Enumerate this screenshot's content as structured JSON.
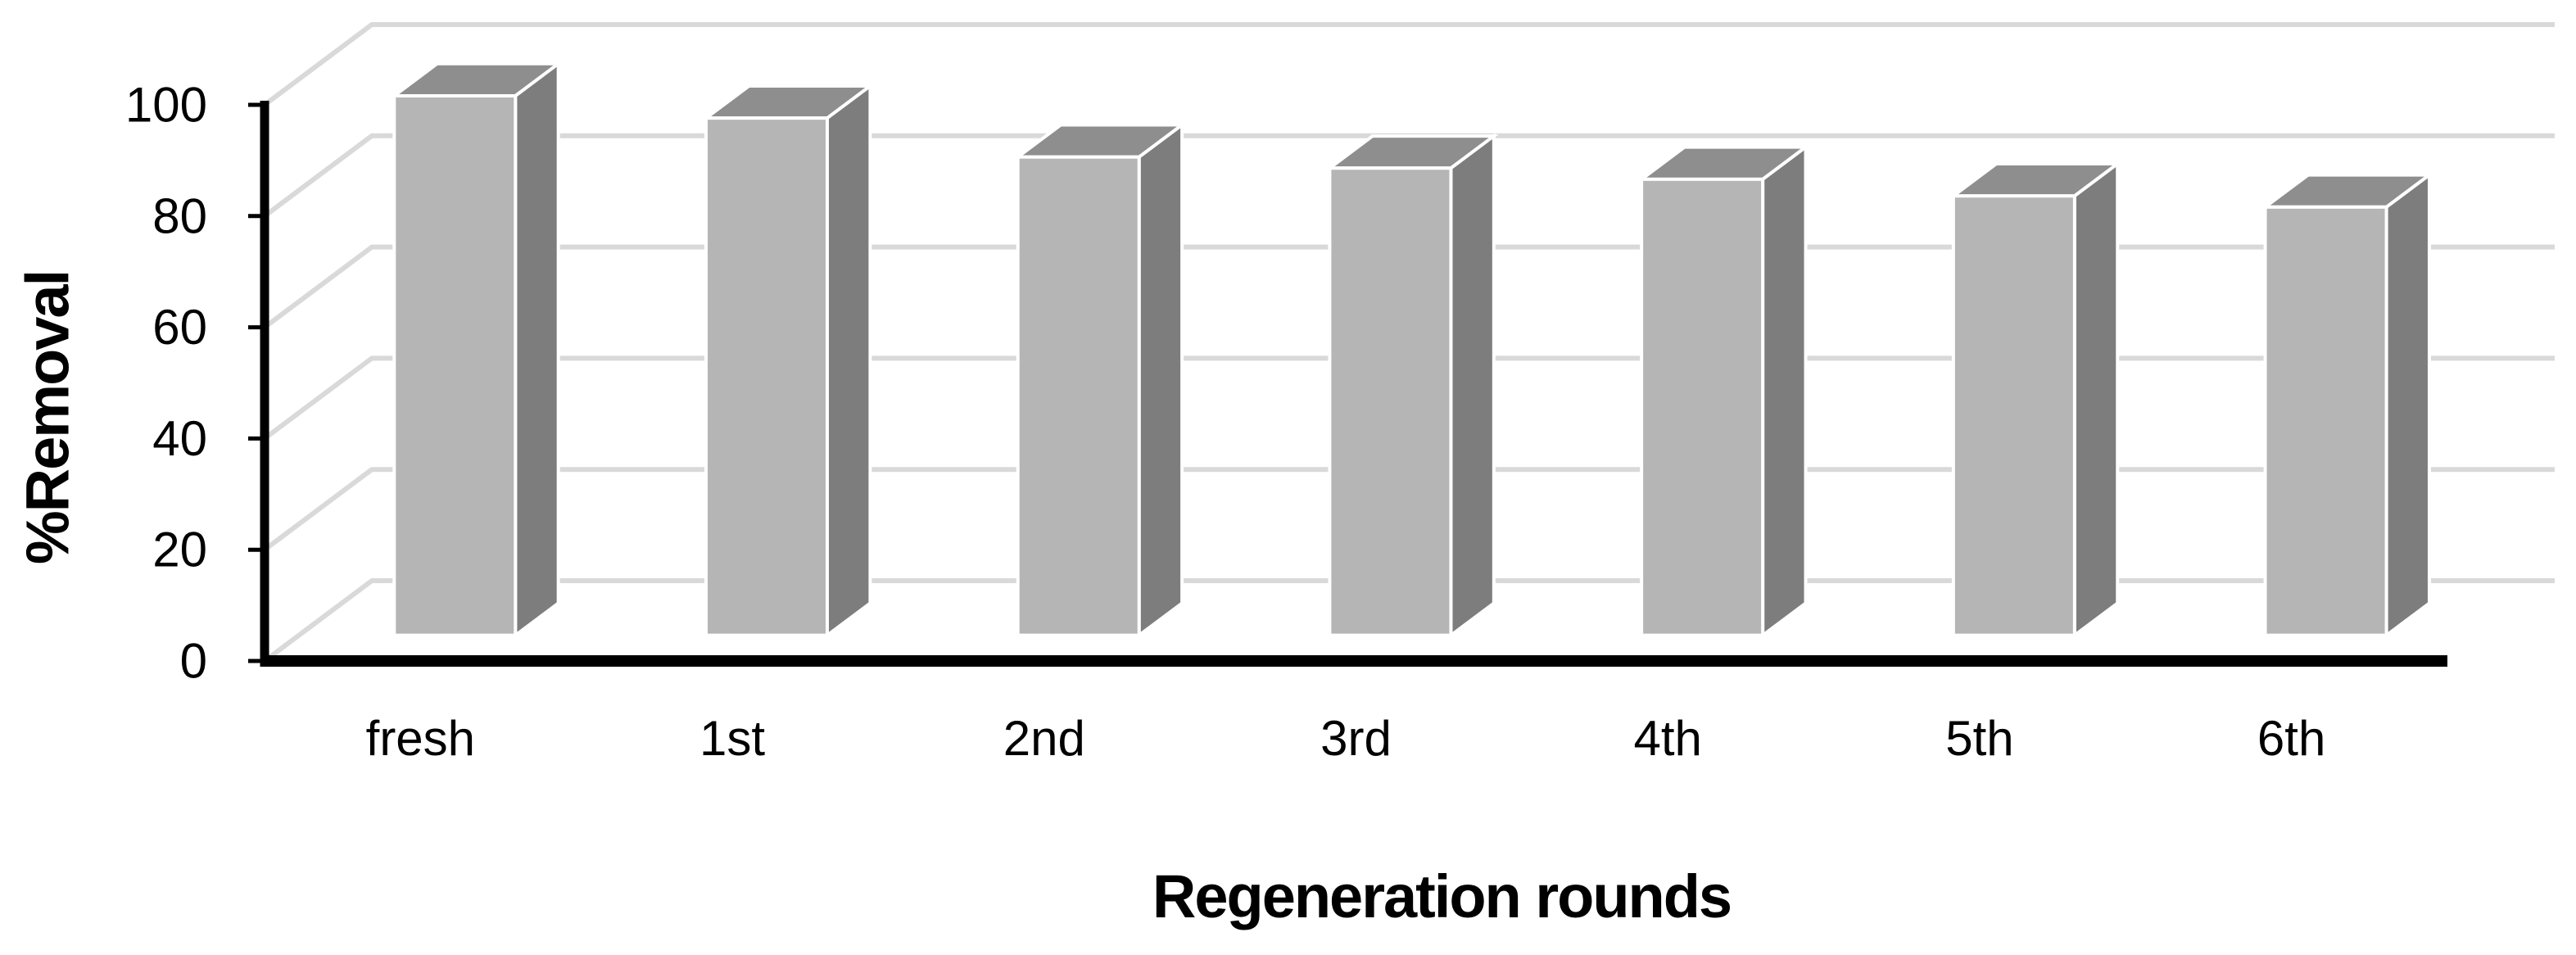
{
  "chart_data": {
    "type": "bar",
    "style": "3d-column",
    "title": "",
    "categories": [
      "fresh",
      "1st",
      "2nd",
      "3rd",
      "4th",
      "5th",
      "6th"
    ],
    "values": [
      97,
      93,
      86,
      84,
      82,
      79,
      77
    ],
    "xlabel": "Regeneration rounds",
    "ylabel": "%Removal",
    "ylim": [
      0,
      100
    ],
    "yticks": [
      0,
      20,
      40,
      60,
      80,
      100
    ],
    "grid": true,
    "legend": "none",
    "colors": {
      "background": "#ffffff",
      "bar_front": "#b5b5b5",
      "bar_top": "#8e8e8e",
      "bar_side": "#7d7d7d",
      "bar_edge": "#ffffff",
      "gridline": "#d9d9d9",
      "axis": "#000000",
      "text": "#000000"
    }
  }
}
